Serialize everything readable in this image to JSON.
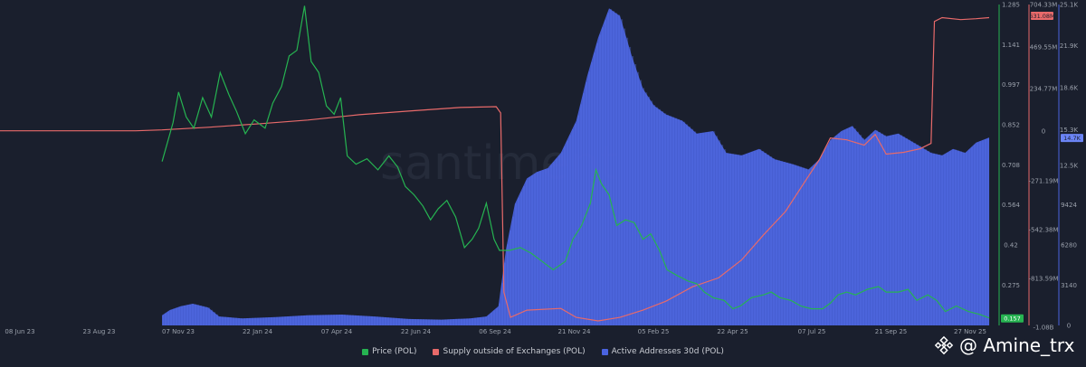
{
  "chart_data": {
    "type": "line",
    "watermark": "santiment",
    "x_ticks": [
      "08 Jun 23",
      "23 Aug 23",
      "07 Nov 23",
      "22 Jan 24",
      "07 Apr 24",
      "22 Jun 24",
      "06 Sep 24",
      "21 Nov 24",
      "05 Feb 25",
      "22 Apr 25",
      "07 Jul 25",
      "21 Sep 25",
      "27 Nov 25"
    ],
    "x_range": [
      "2023-06-08",
      "2025-11-27"
    ],
    "axes": {
      "price": {
        "ticks": [
          "1.285",
          "1.141",
          "0.997",
          "0.852",
          "0.708",
          "0.564",
          "0.42",
          "0.275"
        ],
        "range": [
          0.13,
          1.285
        ]
      },
      "supply": {
        "ticks": [
          "704.33M",
          "469.55M",
          "234.77M",
          "0",
          "-271.19M",
          "-542.38M",
          "-813.59M",
          "-1.08B"
        ],
        "range": [
          -1085000000,
          704330000
        ]
      },
      "active": {
        "ticks": [
          "25.1K",
          "21.9K",
          "18.6K",
          "15.3K",
          "12.5K",
          "9424",
          "6280",
          "3140",
          "0"
        ],
        "range": [
          0,
          25100
        ]
      }
    },
    "current_values": {
      "price": "0.157",
      "supply": "631.08M",
      "active": "14.7K"
    },
    "colors": {
      "price": "#26b351",
      "supply": "#e86a6a",
      "active": "#4a63e0"
    },
    "series": [
      {
        "name": "Price (POL)",
        "axis": "price",
        "points": [
          [
            "2023-11-03",
            0.72
          ],
          [
            "2023-11-08",
            0.79
          ],
          [
            "2023-11-13",
            0.86
          ],
          [
            "2023-11-18",
            0.97
          ],
          [
            "2023-11-25",
            0.88
          ],
          [
            "2023-12-02",
            0.84
          ],
          [
            "2023-12-10",
            0.95
          ],
          [
            "2023-12-18",
            0.88
          ],
          [
            "2023-12-26",
            1.04
          ],
          [
            "2024-01-03",
            0.96
          ],
          [
            "2024-01-10",
            0.9
          ],
          [
            "2024-01-18",
            0.82
          ],
          [
            "2024-01-26",
            0.87
          ],
          [
            "2024-02-05",
            0.84
          ],
          [
            "2024-02-12",
            0.93
          ],
          [
            "2024-02-20",
            0.99
          ],
          [
            "2024-02-27",
            1.1
          ],
          [
            "2024-03-05",
            1.12
          ],
          [
            "2024-03-12",
            1.28
          ],
          [
            "2024-03-18",
            1.08
          ],
          [
            "2024-03-25",
            1.04
          ],
          [
            "2024-04-01",
            0.92
          ],
          [
            "2024-04-08",
            0.89
          ],
          [
            "2024-04-14",
            0.95
          ],
          [
            "2024-04-20",
            0.74
          ],
          [
            "2024-04-28",
            0.71
          ],
          [
            "2024-05-08",
            0.73
          ],
          [
            "2024-05-18",
            0.69
          ],
          [
            "2024-05-28",
            0.74
          ],
          [
            "2024-06-05",
            0.7
          ],
          [
            "2024-06-12",
            0.63
          ],
          [
            "2024-06-20",
            0.6
          ],
          [
            "2024-06-28",
            0.56
          ],
          [
            "2024-07-05",
            0.51
          ],
          [
            "2024-07-12",
            0.55
          ],
          [
            "2024-07-20",
            0.58
          ],
          [
            "2024-07-28",
            0.52
          ],
          [
            "2024-08-05",
            0.41
          ],
          [
            "2024-08-12",
            0.44
          ],
          [
            "2024-08-18",
            0.48
          ],
          [
            "2024-08-25",
            0.57
          ],
          [
            "2024-09-01",
            0.44
          ],
          [
            "2024-09-06",
            0.4
          ],
          [
            "2024-09-15",
            0.4
          ],
          [
            "2024-09-25",
            0.41
          ],
          [
            "2024-10-05",
            0.39
          ],
          [
            "2024-10-15",
            0.36
          ],
          [
            "2024-10-25",
            0.33
          ],
          [
            "2024-11-05",
            0.36
          ],
          [
            "2024-11-12",
            0.44
          ],
          [
            "2024-11-20",
            0.49
          ],
          [
            "2024-11-28",
            0.57
          ],
          [
            "2024-12-03",
            0.69
          ],
          [
            "2024-12-08",
            0.64
          ],
          [
            "2024-12-15",
            0.6
          ],
          [
            "2024-12-22",
            0.49
          ],
          [
            "2024-12-30",
            0.51
          ],
          [
            "2025-01-07",
            0.5
          ],
          [
            "2025-01-15",
            0.44
          ],
          [
            "2025-01-22",
            0.46
          ],
          [
            "2025-01-30",
            0.4
          ],
          [
            "2025-02-06",
            0.33
          ],
          [
            "2025-02-15",
            0.31
          ],
          [
            "2025-02-25",
            0.29
          ],
          [
            "2025-03-05",
            0.28
          ],
          [
            "2025-03-12",
            0.25
          ],
          [
            "2025-03-20",
            0.23
          ],
          [
            "2025-03-30",
            0.22
          ],
          [
            "2025-04-07",
            0.19
          ],
          [
            "2025-04-14",
            0.2
          ],
          [
            "2025-04-24",
            0.23
          ],
          [
            "2025-05-05",
            0.24
          ],
          [
            "2025-05-12",
            0.25
          ],
          [
            "2025-05-20",
            0.23
          ],
          [
            "2025-05-30",
            0.22
          ],
          [
            "2025-06-08",
            0.2
          ],
          [
            "2025-06-18",
            0.19
          ],
          [
            "2025-06-28",
            0.19
          ],
          [
            "2025-07-05",
            0.21
          ],
          [
            "2025-07-12",
            0.24
          ],
          [
            "2025-07-20",
            0.25
          ],
          [
            "2025-07-28",
            0.24
          ],
          [
            "2025-08-08",
            0.26
          ],
          [
            "2025-08-18",
            0.27
          ],
          [
            "2025-08-25",
            0.25
          ],
          [
            "2025-09-05",
            0.25
          ],
          [
            "2025-09-14",
            0.26
          ],
          [
            "2025-09-22",
            0.22
          ],
          [
            "2025-10-02",
            0.24
          ],
          [
            "2025-10-10",
            0.22
          ],
          [
            "2025-10-18",
            0.18
          ],
          [
            "2025-10-28",
            0.2
          ],
          [
            "2025-11-08",
            0.18
          ],
          [
            "2025-11-18",
            0.17
          ],
          [
            "2025-11-27",
            0.157
          ]
        ]
      },
      {
        "name": "Supply outside of Exchanges (POL)",
        "axis": "supply",
        "points": [
          [
            "2023-06-08",
            0
          ],
          [
            "2023-10-10",
            0
          ],
          [
            "2023-11-03",
            5000000
          ],
          [
            "2023-12-15",
            20000000
          ],
          [
            "2024-02-01",
            40000000
          ],
          [
            "2024-03-15",
            60000000
          ],
          [
            "2024-05-01",
            90000000
          ],
          [
            "2024-06-15",
            110000000
          ],
          [
            "2024-08-01",
            130000000
          ],
          [
            "2024-09-03",
            135000000
          ],
          [
            "2024-09-07",
            100000000
          ],
          [
            "2024-09-10",
            -900000000
          ],
          [
            "2024-09-16",
            -1040000000
          ],
          [
            "2024-10-01",
            -1000000000
          ],
          [
            "2024-11-01",
            -990000000
          ],
          [
            "2024-11-15",
            -1040000000
          ],
          [
            "2024-12-05",
            -1060000000
          ],
          [
            "2024-12-25",
            -1040000000
          ],
          [
            "2025-01-15",
            -1000000000
          ],
          [
            "2025-02-05",
            -950000000
          ],
          [
            "2025-03-01",
            -870000000
          ],
          [
            "2025-03-25",
            -820000000
          ],
          [
            "2025-04-15",
            -720000000
          ],
          [
            "2025-05-05",
            -580000000
          ],
          [
            "2025-05-25",
            -450000000
          ],
          [
            "2025-06-10",
            -300000000
          ],
          [
            "2025-06-25",
            -160000000
          ],
          [
            "2025-07-05",
            -40000000
          ],
          [
            "2025-07-20",
            -50000000
          ],
          [
            "2025-08-05",
            -80000000
          ],
          [
            "2025-08-15",
            -20000000
          ],
          [
            "2025-08-25",
            -130000000
          ],
          [
            "2025-09-10",
            -120000000
          ],
          [
            "2025-09-25",
            -100000000
          ],
          [
            "2025-10-05",
            -70000000
          ],
          [
            "2025-10-08",
            610000000
          ],
          [
            "2025-10-15",
            631000000
          ],
          [
            "2025-11-01",
            620000000
          ],
          [
            "2025-11-15",
            625000000
          ],
          [
            "2025-11-27",
            631080000
          ]
        ]
      },
      {
        "name": "Active Addresses 30d (POL)",
        "axis": "active",
        "points": [
          [
            "2023-11-03",
            800
          ],
          [
            "2023-11-10",
            1200
          ],
          [
            "2023-11-20",
            1500
          ],
          [
            "2023-12-01",
            1700
          ],
          [
            "2023-12-15",
            1400
          ],
          [
            "2023-12-25",
            700
          ],
          [
            "2024-01-15",
            550
          ],
          [
            "2024-02-15",
            650
          ],
          [
            "2024-03-15",
            800
          ],
          [
            "2024-04-15",
            850
          ],
          [
            "2024-05-15",
            700
          ],
          [
            "2024-06-15",
            500
          ],
          [
            "2024-07-15",
            450
          ],
          [
            "2024-08-10",
            550
          ],
          [
            "2024-08-25",
            700
          ],
          [
            "2024-09-05",
            1500
          ],
          [
            "2024-09-12",
            6000
          ],
          [
            "2024-09-20",
            9500
          ],
          [
            "2024-10-01",
            11500
          ],
          [
            "2024-10-10",
            12000
          ],
          [
            "2024-10-20",
            12300
          ],
          [
            "2024-11-01",
            13500
          ],
          [
            "2024-11-15",
            16000
          ],
          [
            "2024-11-25",
            19500
          ],
          [
            "2024-12-05",
            22500
          ],
          [
            "2024-12-15",
            24800
          ],
          [
            "2024-12-25",
            24200
          ],
          [
            "2025-01-05",
            21000
          ],
          [
            "2025-01-15",
            18500
          ],
          [
            "2025-01-25",
            17200
          ],
          [
            "2025-02-05",
            16500
          ],
          [
            "2025-02-20",
            16000
          ],
          [
            "2025-03-05",
            15000
          ],
          [
            "2025-03-20",
            15200
          ],
          [
            "2025-04-01",
            13500
          ],
          [
            "2025-04-15",
            13300
          ],
          [
            "2025-05-01",
            13800
          ],
          [
            "2025-05-15",
            13000
          ],
          [
            "2025-06-01",
            12600
          ],
          [
            "2025-06-15",
            12200
          ],
          [
            "2025-06-25",
            13000
          ],
          [
            "2025-07-05",
            14500
          ],
          [
            "2025-07-15",
            15200
          ],
          [
            "2025-07-25",
            15600
          ],
          [
            "2025-08-05",
            14500
          ],
          [
            "2025-08-15",
            15300
          ],
          [
            "2025-08-25",
            14800
          ],
          [
            "2025-09-05",
            15000
          ],
          [
            "2025-09-15",
            14500
          ],
          [
            "2025-09-25",
            14000
          ],
          [
            "2025-10-05",
            13500
          ],
          [
            "2025-10-15",
            13300
          ],
          [
            "2025-10-25",
            13800
          ],
          [
            "2025-11-05",
            13500
          ],
          [
            "2025-11-15",
            14300
          ],
          [
            "2025-11-27",
            14700
          ]
        ]
      }
    ]
  },
  "legend": [
    {
      "label": "Price (POL)",
      "color": "#26b351"
    },
    {
      "label": "Supply outside of Exchanges (POL)",
      "color": "#e86a6a"
    },
    {
      "label": "Active Addresses 30d (POL)",
      "color": "#4a63e0"
    }
  ],
  "credit": {
    "text": "@ Amine_trx"
  }
}
